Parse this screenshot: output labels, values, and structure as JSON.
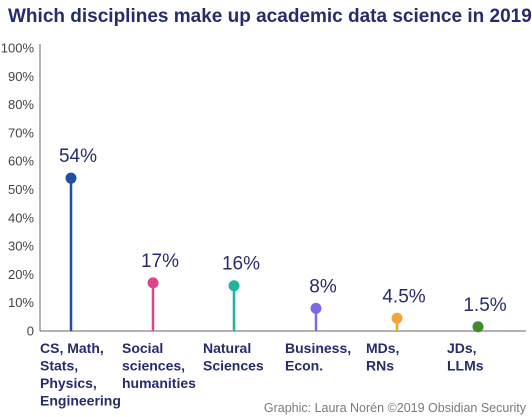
{
  "chart_data": {
    "type": "lollipop",
    "title": "Which disciplines make up academic data science in 2019?",
    "credit": "Graphic: Laura Norén  ©2019 Obsidian Security",
    "ylim": [
      0,
      100
    ],
    "y_ticks": [
      "0",
      "10%",
      "20%",
      "30%",
      "40%",
      "50%",
      "60%",
      "70%",
      "80%",
      "90%",
      "100%"
    ],
    "grid": false,
    "points": [
      {
        "category": [
          "CS, Math,",
          "Stats,",
          "Physics,",
          "Engineering"
        ],
        "value": 54,
        "label": "54%",
        "color": "#1f4fa0"
      },
      {
        "category": [
          "Social",
          "sciences,",
          "humanities"
        ],
        "value": 17,
        "label": "17%",
        "color": "#e0458a"
      },
      {
        "category": [
          "Natural",
          "Sciences"
        ],
        "value": 16,
        "label": "16%",
        "color": "#1fb59a"
      },
      {
        "category": [
          "Business,",
          "Econ."
        ],
        "value": 8,
        "label": "8%",
        "color": "#7b6ae8"
      },
      {
        "category": [
          "MDs,",
          "RNs"
        ],
        "value": 4.5,
        "label": "4.5%",
        "color": "#f3a43a"
      },
      {
        "category": [
          "JDs,",
          "LLMs"
        ],
        "value": 1.5,
        "label": "1.5%",
        "color": "#3f8a2a"
      }
    ]
  }
}
